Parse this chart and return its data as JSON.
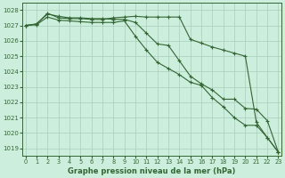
{
  "title": "Graphe pression niveau de la mer (hPa)",
  "background_color": "#cceedd",
  "grid_color": "#aaccbb",
  "line_color": "#336633",
  "xlim": [
    -0.3,
    23.3
  ],
  "ylim": [
    1018.5,
    1028.5
  ],
  "yticks": [
    1019,
    1020,
    1021,
    1022,
    1023,
    1024,
    1025,
    1026,
    1027,
    1028
  ],
  "xticks": [
    0,
    1,
    2,
    3,
    4,
    5,
    6,
    7,
    8,
    9,
    10,
    11,
    12,
    13,
    14,
    15,
    16,
    17,
    18,
    19,
    20,
    21,
    22,
    23
  ],
  "series": [
    [
      1027.0,
      1027.1,
      1027.8,
      1027.5,
      1027.45,
      1027.45,
      1027.4,
      1027.4,
      1027.5,
      1027.55,
      1027.6,
      1027.55,
      1027.55,
      1027.55,
      1027.55,
      1026.1,
      1025.85,
      1025.6,
      1025.4,
      1025.2,
      1025.0,
      1020.7,
      1019.7,
      1018.75
    ],
    [
      1027.0,
      1027.1,
      1027.75,
      1027.6,
      1027.5,
      1027.5,
      1027.45,
      1027.45,
      1027.4,
      1027.4,
      1027.2,
      1026.5,
      1025.8,
      1025.7,
      1024.7,
      1023.7,
      1023.2,
      1022.8,
      1022.2,
      1022.2,
      1021.6,
      1021.55,
      1020.8,
      1018.75
    ],
    [
      1027.0,
      1027.05,
      1027.55,
      1027.35,
      1027.3,
      1027.25,
      1027.2,
      1027.2,
      1027.2,
      1027.3,
      1026.3,
      1025.4,
      1024.6,
      1024.2,
      1023.8,
      1023.3,
      1023.1,
      1022.3,
      1021.7,
      1021.0,
      1020.5,
      1020.5,
      1019.7,
      1018.75
    ]
  ]
}
